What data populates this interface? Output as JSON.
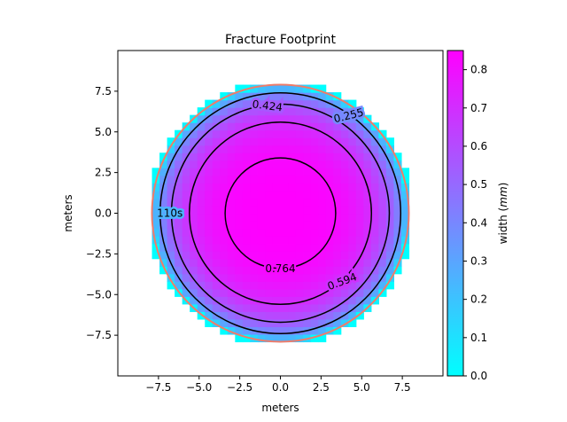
{
  "chart_data": {
    "type": "heatmap",
    "title": "Fracture Footprint",
    "xlabel": "meters",
    "ylabel": "meters",
    "xlim": [
      -10,
      10
    ],
    "ylim": [
      -10,
      10
    ],
    "xticks": [
      -7.5,
      -5.0,
      -2.5,
      0.0,
      2.5,
      5.0,
      7.5
    ],
    "yticks": [
      -7.5,
      -5.0,
      -2.5,
      0.0,
      2.5,
      5.0,
      7.5
    ],
    "xtick_labels": [
      "−7.5",
      "−5.0",
      "−2.5",
      "0.0",
      "2.5",
      "5.0",
      "7.5"
    ],
    "ytick_labels": [
      "−7.5",
      "−5.0",
      "−2.5",
      "0.0",
      "2.5",
      "5.0",
      "7.5"
    ],
    "grid": false,
    "fracture_radius": 7.9,
    "center_width": 0.85,
    "colorbar": {
      "label": "width (mm)",
      "label_prefix": "width (",
      "label_unit": "mm",
      "label_suffix": ")",
      "range": [
        0.0,
        0.85
      ],
      "ticks": [
        0.0,
        0.1,
        0.2,
        0.3,
        0.4,
        0.5,
        0.6,
        0.7,
        0.8
      ],
      "tick_labels": [
        "0.0",
        "0.1",
        "0.2",
        "0.3",
        "0.4",
        "0.5",
        "0.6",
        "0.7",
        "0.8"
      ],
      "colormap": [
        "#00ffff",
        "#ff00ff"
      ]
    },
    "contours": [
      {
        "radius": 3.4,
        "label": "0.764",
        "label_pos": [
          0.0,
          -3.4
        ],
        "label_angle": 0
      },
      {
        "radius": 5.6,
        "label": "0.594",
        "label_pos": [
          3.8,
          -4.2
        ],
        "label_angle": -20
      },
      {
        "radius": 6.7,
        "label": "0.424",
        "label_pos": [
          -0.8,
          6.6
        ],
        "label_angle": 7
      },
      {
        "radius": 7.4,
        "label": "0.255",
        "label_pos": [
          4.2,
          6.0
        ],
        "label_angle": -14
      }
    ],
    "front": {
      "radius": 7.9,
      "color": "#ef7c6a"
    },
    "front_label": {
      "text": "110s",
      "pos": [
        -6.8,
        0.0
      ]
    }
  }
}
